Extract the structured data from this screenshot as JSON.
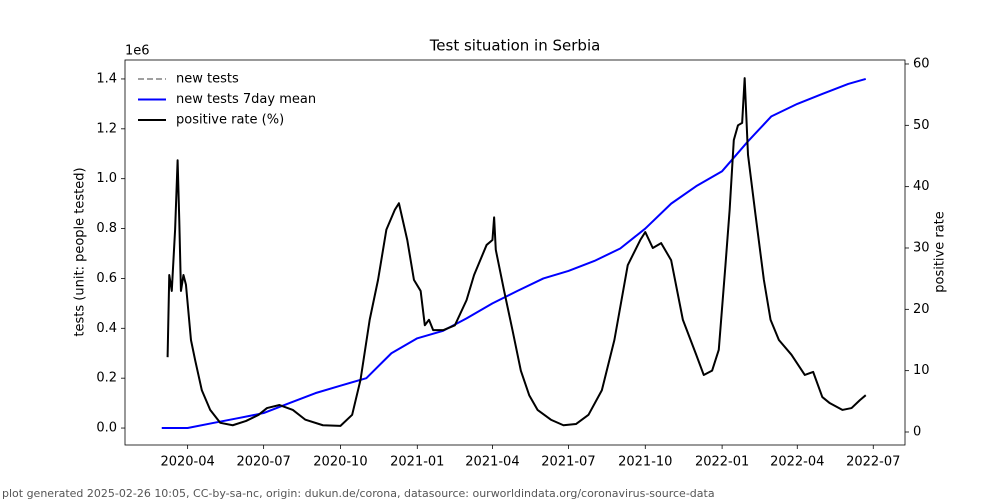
{
  "chart_data": {
    "type": "line",
    "title": "Test situation in Serbia",
    "ylabel": "tests (unit: people tested)",
    "y_offset_label": "1e6",
    "y2label": "positive rate",
    "footer": "plot generated 2025-02-26 10:05, CC-by-sa-nc, origin: dukun.de/corona, datasource: ourworldindata.org/coronavirus-source-data",
    "legend": "upper left",
    "xlim": [
      "2020-01-17",
      "2022-08-08"
    ],
    "xticks": [
      "2020-04",
      "2020-07",
      "2020-10",
      "2021-01",
      "2021-04",
      "2021-07",
      "2021-10",
      "2022-01",
      "2022-04",
      "2022-07"
    ],
    "ylim": [
      -0.068,
      1.476
    ],
    "yticks": [
      {
        "value": 0,
        "label": "0.0"
      },
      0.2,
      0.4,
      0.6,
      0.8,
      {
        "value": 1,
        "label": "1.0"
      },
      1.2,
      1.4
    ],
    "y2lim": [
      -2.12,
      60.65
    ],
    "y2ticks": [
      0,
      10,
      20,
      30,
      40,
      50,
      60
    ],
    "series": [
      {
        "name": "new tests",
        "color": "#808080",
        "linestyle": "dashed",
        "x": [],
        "values": []
      },
      {
        "name": "new tests 7day mean",
        "color": "#0000ff",
        "linestyle": "solid",
        "x": [
          "2020-03-01",
          "2020-04-01",
          "2020-05-01",
          "2020-06-01",
          "2020-07-01",
          "2020-08-01",
          "2020-09-01",
          "2020-10-01",
          "2020-11-01",
          "2020-12-01",
          "2021-01-01",
          "2021-02-01",
          "2021-03-01",
          "2021-04-01",
          "2021-05-01",
          "2021-06-01",
          "2021-07-01",
          "2021-08-01",
          "2021-09-01",
          "2021-10-01",
          "2021-11-01",
          "2021-12-01",
          "2022-01-01",
          "2022-02-01",
          "2022-03-01",
          "2022-04-01",
          "2022-05-01",
          "2022-06-01",
          "2022-06-22"
        ],
        "values": [
          0.0,
          0.0,
          0.02,
          0.04,
          0.06,
          0.1,
          0.14,
          0.17,
          0.2,
          0.3,
          0.36,
          0.39,
          0.44,
          0.5,
          0.55,
          0.6,
          0.63,
          0.67,
          0.72,
          0.8,
          0.9,
          0.97,
          1.03,
          1.15,
          1.25,
          1.3,
          1.34,
          1.38,
          1.4
        ]
      },
      {
        "name": "positive rate (%)",
        "color": "#000000",
        "linestyle": "solid",
        "axis": "y2",
        "x": [
          "2020-03-08",
          "2020-03-10",
          "2020-03-13",
          "2020-03-17",
          "2020-03-20",
          "2020-03-22",
          "2020-03-24",
          "2020-03-27",
          "2020-03-30",
          "2020-04-05",
          "2020-04-10",
          "2020-04-18",
          "2020-04-28",
          "2020-05-10",
          "2020-05-25",
          "2020-06-10",
          "2020-06-25",
          "2020-07-05",
          "2020-07-20",
          "2020-08-05",
          "2020-08-20",
          "2020-09-10",
          "2020-10-01",
          "2020-10-15",
          "2020-10-25",
          "2020-11-05",
          "2020-11-15",
          "2020-11-25",
          "2020-12-05",
          "2020-12-10",
          "2020-12-20",
          "2020-12-28",
          "2021-01-05",
          "2021-01-10",
          "2021-01-15",
          "2021-01-20",
          "2021-02-01",
          "2021-02-15",
          "2021-03-01",
          "2021-03-10",
          "2021-03-25",
          "2021-04-01",
          "2021-04-03",
          "2021-04-05",
          "2021-04-15",
          "2021-04-25",
          "2021-05-05",
          "2021-05-15",
          "2021-05-25",
          "2021-06-10",
          "2021-06-25",
          "2021-07-10",
          "2021-07-25",
          "2021-08-10",
          "2021-08-25",
          "2021-09-10",
          "2021-09-25",
          "2021-10-01",
          "2021-10-10",
          "2021-10-20",
          "2021-11-01",
          "2021-11-15",
          "2021-12-01",
          "2021-12-10",
          "2021-12-20",
          "2021-12-28",
          "2022-01-05",
          "2022-01-10",
          "2022-01-15",
          "2022-01-20",
          "2022-01-25",
          "2022-01-28",
          "2022-02-01",
          "2022-02-10",
          "2022-02-20",
          "2022-02-28",
          "2022-03-10",
          "2022-03-25",
          "2022-04-10",
          "2022-04-20",
          "2022-05-01",
          "2022-05-10",
          "2022-05-25",
          "2022-06-05",
          "2022-06-15",
          "2022-06-22"
        ],
        "values": [
          12.2,
          25.6,
          23,
          33,
          44.3,
          34.5,
          23,
          25.6,
          24,
          15,
          11.7,
          6.8,
          3.6,
          1.5,
          1.1,
          1.8,
          2.8,
          3.9,
          4.4,
          3.6,
          2,
          1.1,
          1,
          2.8,
          8.5,
          18.3,
          24.8,
          33,
          36.2,
          37.3,
          31.3,
          24.8,
          23,
          17.4,
          18.3,
          16.6,
          16.6,
          17.4,
          21.5,
          25.6,
          30.5,
          31.3,
          35,
          29.7,
          23,
          16.6,
          10,
          6,
          3.6,
          2,
          1.1,
          1.3,
          2.8,
          6.8,
          15,
          27.2,
          31.3,
          32.6,
          30,
          30.8,
          28,
          18.3,
          12.6,
          9.3,
          10,
          13.4,
          27.2,
          36.2,
          47.6,
          50,
          50.4,
          57.7,
          45.2,
          35.4,
          24.8,
          18.3,
          15,
          12.6,
          9.3,
          9.8,
          5.7,
          4.7,
          3.6,
          3.9,
          5.2,
          6
        ]
      }
    ]
  }
}
